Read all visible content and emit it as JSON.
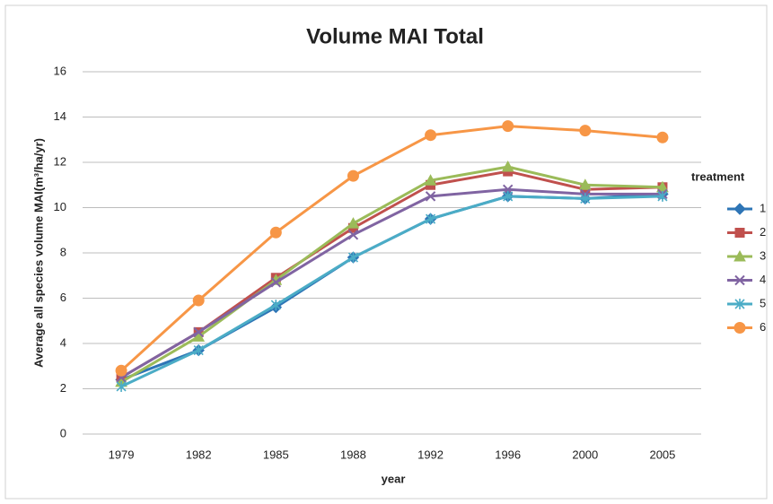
{
  "chart_data": {
    "type": "line",
    "title": "Volume MAI Total",
    "x_label": "year",
    "y_label": "Average all species volume MAI(m³/ha/yr)",
    "legend_title": "treatment",
    "categories": [
      "1979",
      "1982",
      "1985",
      "1988",
      "1992",
      "1996",
      "2000",
      "2005"
    ],
    "series": [
      {
        "name": "1",
        "color": "#2e75b6",
        "marker": "diamond",
        "values": [
          2.4,
          3.7,
          5.6,
          7.8,
          9.5,
          10.5,
          10.4,
          10.6
        ]
      },
      {
        "name": "2",
        "color": "#c0504d",
        "marker": "square",
        "values": [
          2.5,
          4.5,
          6.9,
          9.1,
          11.0,
          11.6,
          10.8,
          10.9
        ]
      },
      {
        "name": "3",
        "color": "#9bbb59",
        "marker": "triangle",
        "values": [
          2.3,
          4.3,
          6.8,
          9.3,
          11.2,
          11.8,
          11.0,
          10.9
        ]
      },
      {
        "name": "4",
        "color": "#8064a2",
        "marker": "x",
        "values": [
          2.5,
          4.5,
          6.7,
          8.8,
          10.5,
          10.8,
          10.6,
          10.6
        ]
      },
      {
        "name": "5",
        "color": "#4bacc6",
        "marker": "star",
        "values": [
          2.1,
          3.7,
          5.7,
          7.8,
          9.5,
          10.5,
          10.4,
          10.5
        ]
      },
      {
        "name": "6",
        "color": "#f79646",
        "marker": "circle",
        "values": [
          2.8,
          5.9,
          8.9,
          11.4,
          13.2,
          13.6,
          13.4,
          13.1
        ]
      }
    ],
    "ylim": [
      0,
      16
    ],
    "yticks": [
      0,
      2,
      4,
      6,
      8,
      10,
      12,
      14,
      16
    ],
    "grid": true,
    "legend": "right"
  }
}
